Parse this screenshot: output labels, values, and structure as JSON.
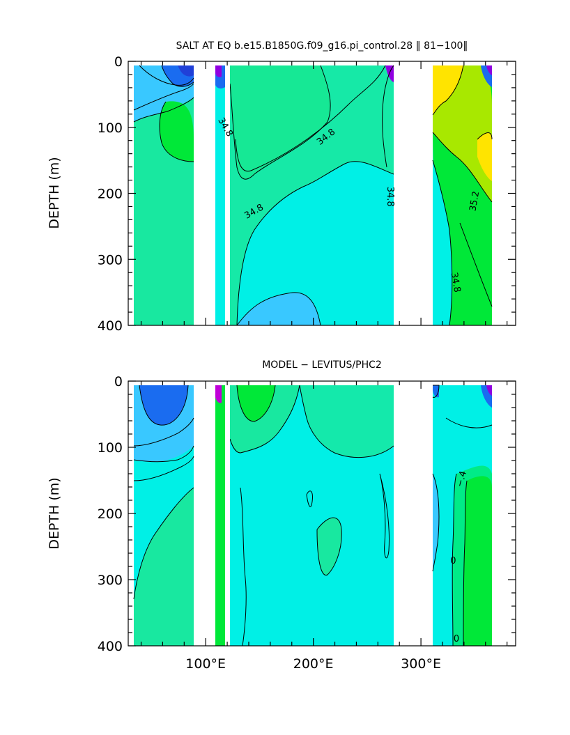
{
  "chart_data": [
    {
      "type": "heatmap",
      "title": "SALT AT EQ b.e15.B1850G.f09_g16.pi_control.28 ‖ 81−100‖",
      "ylabel": "DEPTH (m)",
      "xlim": [
        28,
        388
      ],
      "ylim": [
        400,
        0
      ],
      "x_tick_labels": [
        "",
        "",
        ""
      ],
      "y_ticks": [
        0,
        100,
        200,
        300,
        400
      ],
      "y_tick_labels": [
        "0",
        "100",
        "200",
        "300",
        "400"
      ],
      "contour_labels": [
        {
          "text": "34.8",
          "x": 118,
          "y": 100,
          "rot": 60
        },
        {
          "text": "34.8",
          "x": 212,
          "y": 115,
          "rot": -38
        },
        {
          "text": "34.8",
          "x": 145,
          "y": 228,
          "rot": -30
        },
        {
          "text": "34.8",
          "x": 271,
          "y": 205,
          "rot": 90
        },
        {
          "text": "35.2",
          "x": 350,
          "y": 212,
          "rot": -80
        },
        {
          "text": "34.8",
          "x": 332,
          "y": 335,
          "rot": 80
        }
      ]
    },
    {
      "type": "heatmap",
      "title": "MODEL − LEVITUS/PHC2",
      "ylabel": "DEPTH (m)",
      "xlim": [
        28,
        388
      ],
      "ylim": [
        400,
        0
      ],
      "x_tick_labels": [
        "100°E",
        "200°E",
        "300°E"
      ],
      "y_ticks": [
        0,
        100,
        200,
        300,
        400
      ],
      "y_tick_labels": [
        "0",
        "100",
        "200",
        "300",
        "400"
      ],
      "contour_labels": [
        {
          "text": "−.4",
          "x": 338,
          "y": 148,
          "rot": -75
        },
        {
          "text": "0",
          "x": 330,
          "y": 272,
          "rot": 0
        },
        {
          "text": "0",
          "x": 333,
          "y": 390,
          "rot": 0
        }
      ]
    }
  ],
  "colors": {
    "violet": "#9000e0",
    "blue": "#1a6cf0",
    "light_blue": "#39c8ff",
    "cyan": "#00f0e6",
    "teal_green": "#18e8a0",
    "green": "#00e838",
    "yellow_green": "#a8e800",
    "yellow": "#ffe400",
    "land": "#ffffff"
  }
}
